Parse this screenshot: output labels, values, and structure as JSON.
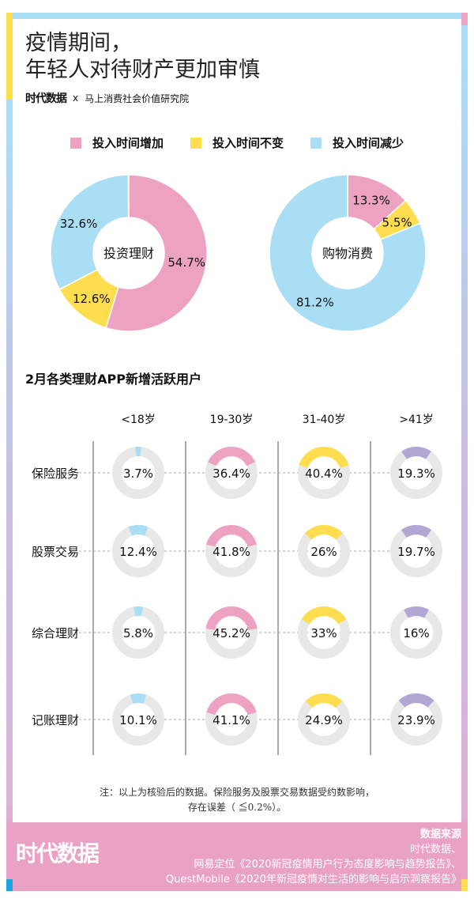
{
  "header": {
    "title_line1": "疫情期间，",
    "title_line2": "年轻人对待财产更加审慎",
    "logo": "时代数据",
    "cross": "x",
    "partner": "马上消费社会价值研究院"
  },
  "colors": {
    "increase": "#eda2c2",
    "same": "#fedd4f",
    "decrease": "#a9def5",
    "purple": "#b1a6d4",
    "track": "#e8e8e8"
  },
  "legend": [
    {
      "label": "投入时间增加",
      "color": "#eda2c2"
    },
    {
      "label": "投入时间不变",
      "color": "#fedd4f"
    },
    {
      "label": "投入时间减少",
      "color": "#a9def5"
    }
  ],
  "chart_data": [
    {
      "type": "pie",
      "donut": true,
      "center_label": "投资理财",
      "slices": [
        {
          "legend": "投入时间增加",
          "value": 54.7,
          "label": "54.7%"
        },
        {
          "legend": "投入时间不变",
          "value": 12.6,
          "label": "12.6%"
        },
        {
          "legend": "投入时间减少",
          "value": 32.6,
          "label": "32.6%"
        }
      ]
    },
    {
      "type": "pie",
      "donut": true,
      "center_label": "购物消费",
      "slices": [
        {
          "legend": "投入时间增加",
          "value": 13.3,
          "label": "13.3%"
        },
        {
          "legend": "投入时间不变",
          "value": 5.5,
          "label": "5.5%"
        },
        {
          "legend": "投入时间减少",
          "value": 81.2,
          "label": "81.2%"
        }
      ]
    },
    {
      "type": "table",
      "title": "2月各类理财APP新增活跃用户",
      "columns": [
        "<18岁",
        "19-30岁",
        "31-40岁",
        ">41岁"
      ],
      "column_colors": [
        "#a9def5",
        "#eda2c2",
        "#fedd4f",
        "#b1a6d4"
      ],
      "rows": [
        {
          "label": "保险服务",
          "values": [
            3.7,
            36.4,
            40.4,
            19.3
          ],
          "labels": [
            "3.7%",
            "36.4%",
            "40.4%",
            "19.3%"
          ]
        },
        {
          "label": "股票交易",
          "values": [
            12.4,
            41.8,
            26,
            19.7
          ],
          "labels": [
            "12.4%",
            "41.8%",
            "26%",
            "19.7%"
          ]
        },
        {
          "label": "综合理财",
          "values": [
            5.8,
            45.2,
            33,
            16
          ],
          "labels": [
            "5.8%",
            "45.2%",
            "33%",
            "16%"
          ]
        },
        {
          "label": "记账理财",
          "values": [
            10.1,
            41.1,
            24.9,
            23.9
          ],
          "labels": [
            "10.1%",
            "41.1%",
            "24.9%",
            "23.9%"
          ]
        }
      ]
    }
  ],
  "note": {
    "line1": "注：以上为核验后的数据。保险服务及股票交易数据受约数影响，",
    "line2": "存在误差（ ≦0.2%）。"
  },
  "footer": {
    "logo": "时代数据",
    "source_heading": "数据来源",
    "sources": [
      "时代数据、",
      "网易定位《2020新冠疫情用户行为态度影响与趋势报告》、",
      "QuestMobile《2020年新冠疫情对生活的影响与启示洞察报告》"
    ]
  }
}
